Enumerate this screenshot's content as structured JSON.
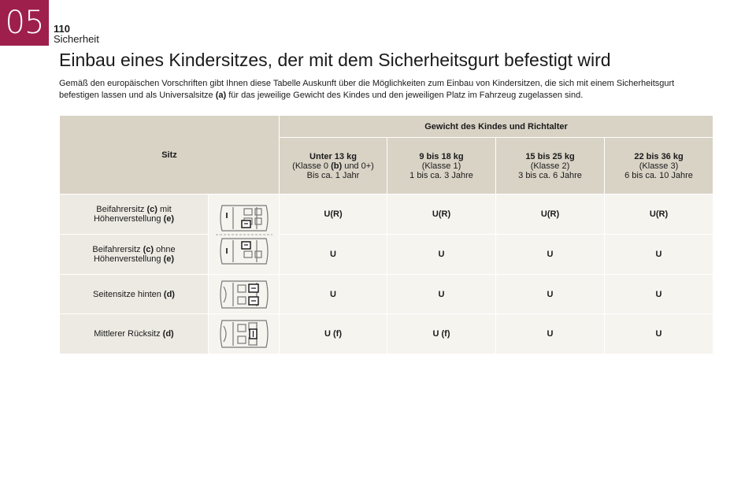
{
  "header": {
    "chapter": "05",
    "page_number": "110",
    "section": "Sicherheit"
  },
  "title": "Einbau eines Kindersitzes, der mit dem Sicherheitsgurt befestigt wird",
  "intro": {
    "line1": "Gemäß den europäischen Vorschriften gibt Ihnen diese Tabelle Auskunft über die Möglichkeiten zum Einbau von Kindersitzen, die sich mit einem Sicherheitsgurt",
    "line2_pre": "befestigen lassen und als Universalsitze ",
    "line2_ref": "(a)",
    "line2_post": " für das jeweilige Gewicht des Kindes und den jeweiligen Platz im Fahrzeug zugelassen sind."
  },
  "table": {
    "seat_header": "Sitz",
    "weight_header": "Gewicht des Kindes und Richtalter",
    "classes": [
      {
        "weight_pre": "Unter 13 kg",
        "class_pre": "(Klasse 0 ",
        "class_ref": "(b)",
        "class_post": " und 0+)",
        "age": "Bis ca. 1 Jahr"
      },
      {
        "weight_pre": "9 bis 18 kg",
        "class_pre": "(Klasse 1)",
        "class_ref": "",
        "class_post": "",
        "age": "1 bis ca. 3 Jahre"
      },
      {
        "weight_pre": "15 bis 25 kg",
        "class_pre": "(Klasse 2)",
        "class_ref": "",
        "class_post": "",
        "age": "3 bis ca. 6 Jahre"
      },
      {
        "weight_pre": "22 bis 36 kg",
        "class_pre": "(Klasse 3)",
        "class_ref": "",
        "class_post": "",
        "age": "6 bis ca. 10 Jahre"
      }
    ],
    "rows": [
      {
        "label_a": "Beifahrersitz ",
        "ref_a": "(c)",
        "label_b": " mit",
        "label_c": "Höhenverstellung ",
        "ref_c": "(e)",
        "values": [
          "U(R)",
          "U(R)",
          "U(R)",
          "U(R)"
        ]
      },
      {
        "label_a": "Beifahrersitz ",
        "ref_a": "(c)",
        "label_b": " ohne",
        "label_c": "Höhenverstellung ",
        "ref_c": "(e)",
        "values": [
          "U",
          "U",
          "U",
          "U"
        ]
      },
      {
        "label_a": "Seitensitze hinten ",
        "ref_a": "(d)",
        "label_b": "",
        "label_c": "",
        "ref_c": "",
        "values": [
          "U",
          "U",
          "U",
          "U"
        ]
      },
      {
        "label_a": "Mittlerer Rücksitz ",
        "ref_a": "(d)",
        "label_b": "",
        "label_c": "",
        "ref_c": "",
        "values": [
          "U (f)",
          "U (f)",
          "U",
          "U"
        ]
      }
    ]
  },
  "icons": [
    "car-front-seat-icon",
    "car-rear-side-seats-icon",
    "car-rear-center-seat-icon"
  ],
  "colors": {
    "accent": "#9e1f4b",
    "header_bg": "#d9d3c6",
    "label_bg": "#edeae3",
    "cell_bg": "#f6f4ef"
  }
}
